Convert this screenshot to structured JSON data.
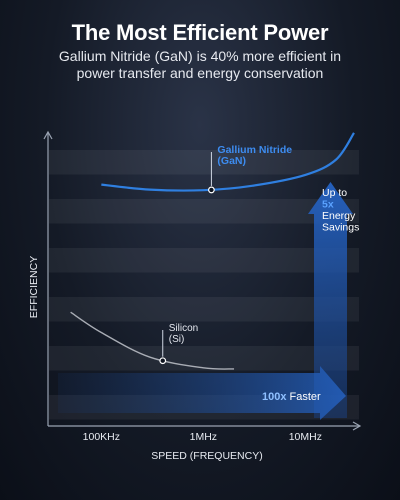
{
  "header": {
    "title": "The Most Efficient Power",
    "subtitle": "Gallium Nitride (GaN) is 40% more efficient in power transfer and energy conservation"
  },
  "colors": {
    "gan_line": "#2f7fe0",
    "si_line": "#a9adb5",
    "arrow": "#1d4f98",
    "highlight": "#3a8df0"
  },
  "chart_data": {
    "type": "line",
    "xlabel": "SPEED (FREQUENCY)",
    "ylabel": "EFFICIENCY",
    "x_ticks": [
      "100KHz",
      "1MHz",
      "10MHz"
    ],
    "xscale": "log",
    "xlim": [
      0.03,
      30
    ],
    "ylim": [
      0,
      100
    ],
    "y_ticks_shown": false,
    "grid": "horizontal bands",
    "series": [
      {
        "name": "Gallium Nitride (GaN)",
        "label_lines": [
          "Gallium Nitride",
          "(GaN)"
        ],
        "color": "#2f7fe0",
        "x": [
          0.1,
          0.3,
          1,
          3,
          10,
          20,
          30
        ],
        "y": [
          82.1,
          80.4,
          80.2,
          81.7,
          85.4,
          90.6,
          99.7
        ]
      },
      {
        "name": "Silicon (Si)",
        "label_lines": [
          "Silicon",
          "(Si)"
        ],
        "color": "#a9adb5",
        "x": [
          0.05,
          0.1,
          0.3,
          1,
          2
        ],
        "y": [
          38.7,
          31.8,
          23.4,
          19.8,
          19.4
        ]
      }
    ],
    "annotations": [
      {
        "id": "energy",
        "lines": [
          "Up to",
          "5x",
          "Energy",
          "Savings"
        ],
        "highlight": "5x"
      },
      {
        "id": "faster",
        "prefix": "100x",
        "suffix": " Faster"
      }
    ]
  }
}
